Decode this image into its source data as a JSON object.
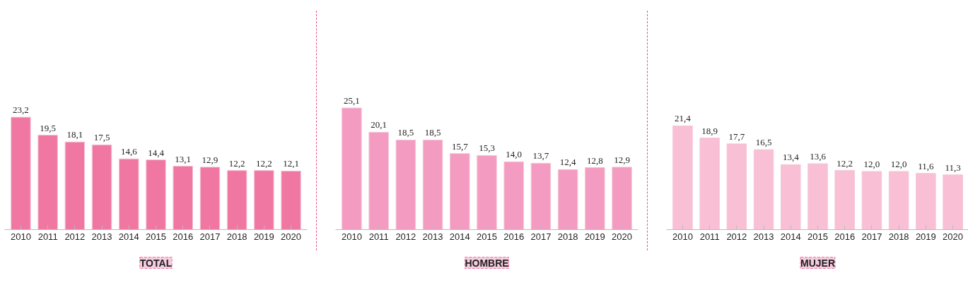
{
  "chart_data": [
    {
      "type": "bar",
      "title": "TOTAL",
      "categories": [
        "2010",
        "2011",
        "2012",
        "2013",
        "2014",
        "2015",
        "2016",
        "2017",
        "2018",
        "2019",
        "2020"
      ],
      "series": [
        {
          "color": "#ef77a1",
          "values": [
            23.2,
            19.5,
            18.1,
            17.5,
            14.6,
            14.4,
            13.1,
            12.9,
            12.2,
            12.2,
            12.1
          ],
          "value_labels": [
            "23,2",
            "19,5",
            "18,1",
            "17,5",
            "14,6",
            "14,4",
            "13,1",
            "12,9",
            "12,2",
            "12,2",
            "12,1"
          ]
        }
      ]
    },
    {
      "type": "bar",
      "title": "HOMBRE",
      "categories": [
        "2010",
        "2011",
        "2012",
        "2013",
        "2014",
        "2015",
        "2016",
        "2017",
        "2018",
        "2019",
        "2020"
      ],
      "series": [
        {
          "color": "#f49bc1",
          "values": [
            25.1,
            20.1,
            18.5,
            18.5,
            15.7,
            15.3,
            14.0,
            13.7,
            12.4,
            12.8,
            12.9
          ],
          "value_labels": [
            "25,1",
            "20,1",
            "18,5",
            "18,5",
            "15,7",
            "15,3",
            "14,0",
            "13,7",
            "12,4",
            "12,8",
            "12,9"
          ]
        }
      ]
    },
    {
      "type": "bar",
      "title": "MUJER",
      "categories": [
        "2010",
        "2011",
        "2012",
        "2013",
        "2014",
        "2015",
        "2016",
        "2017",
        "2018",
        "2019",
        "2020"
      ],
      "series": [
        {
          "color": "#f8bfd5",
          "values": [
            21.4,
            18.9,
            17.7,
            16.5,
            13.4,
            13.6,
            12.2,
            12.0,
            12.0,
            11.6,
            11.3
          ],
          "value_labels": [
            "21,4",
            "18,9",
            "17,7",
            "16,5",
            "13,4",
            "13,6",
            "12,2",
            "12,0",
            "12,0",
            "11,6",
            "11,3"
          ]
        }
      ]
    }
  ]
}
